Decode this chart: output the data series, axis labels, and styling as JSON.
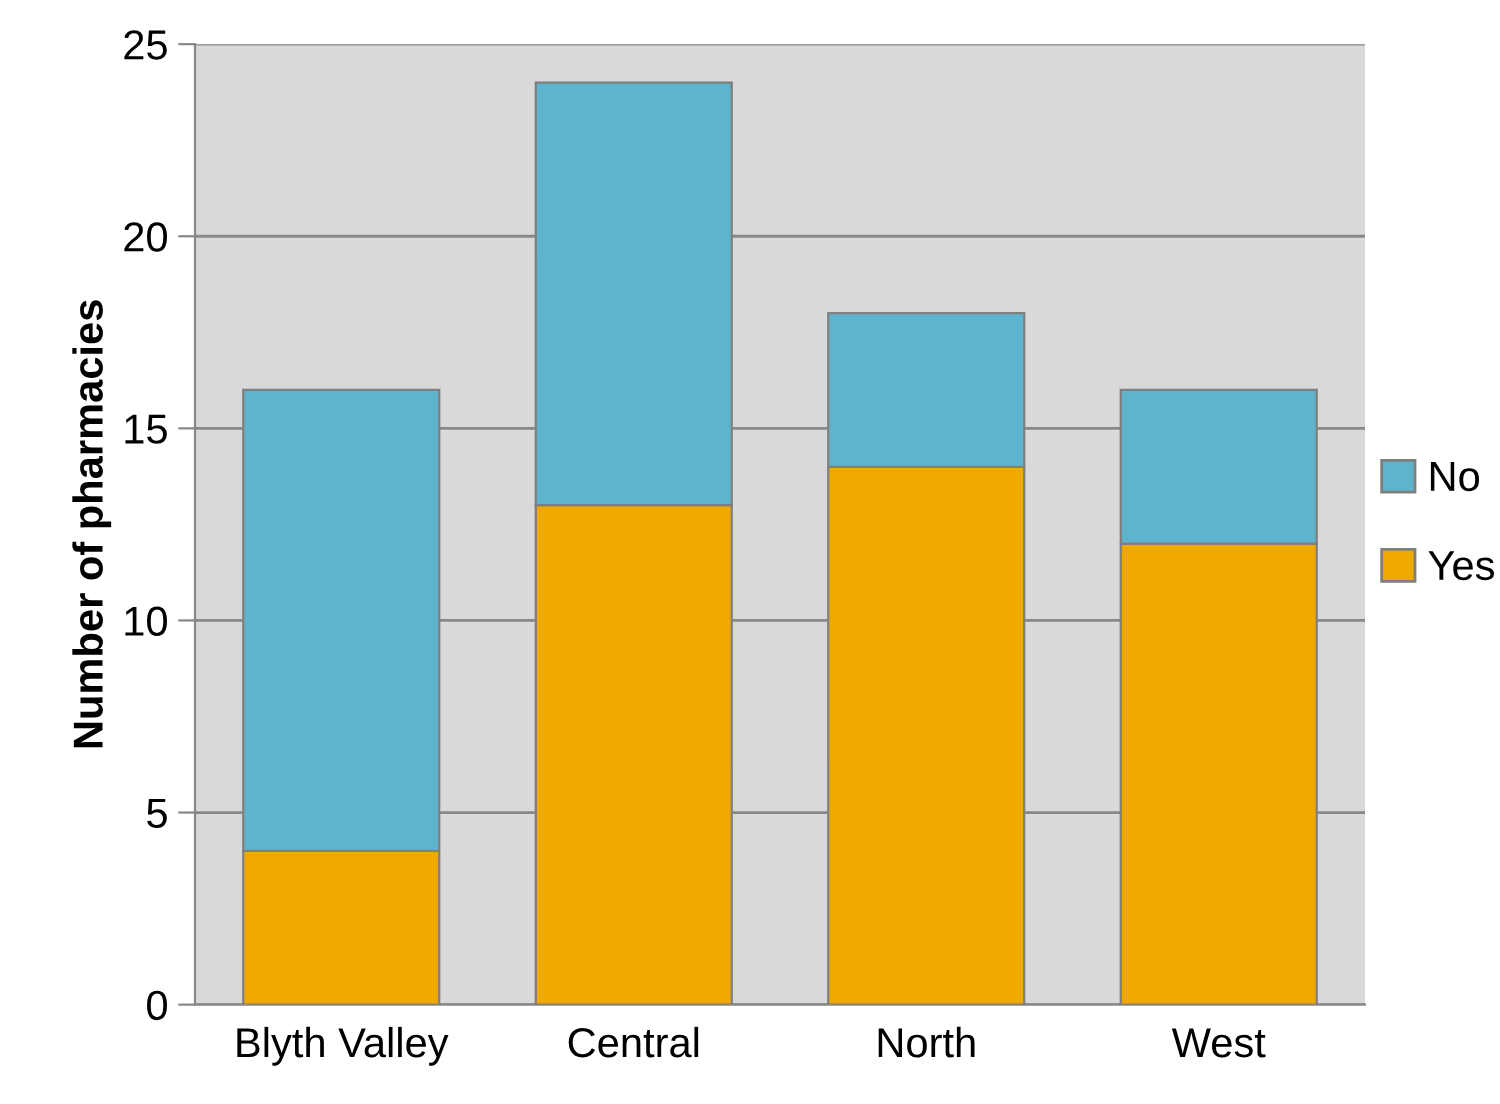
{
  "chart_data": {
    "type": "bar",
    "stacked": true,
    "ylabel": "Number of pharmacies",
    "categories": [
      "Blyth Valley",
      "Central",
      "North",
      "West"
    ],
    "series": [
      {
        "name": "Yes",
        "color": "#f0a900",
        "values": [
          4,
          13,
          14,
          12
        ]
      },
      {
        "name": "No",
        "color": "#5fb4cd",
        "values": [
          12,
          11,
          4,
          4
        ]
      }
    ],
    "ylim": [
      0,
      25
    ],
    "yticks": [
      0,
      5,
      10,
      15,
      20,
      25
    ],
    "grid": "y",
    "legend": "right"
  }
}
